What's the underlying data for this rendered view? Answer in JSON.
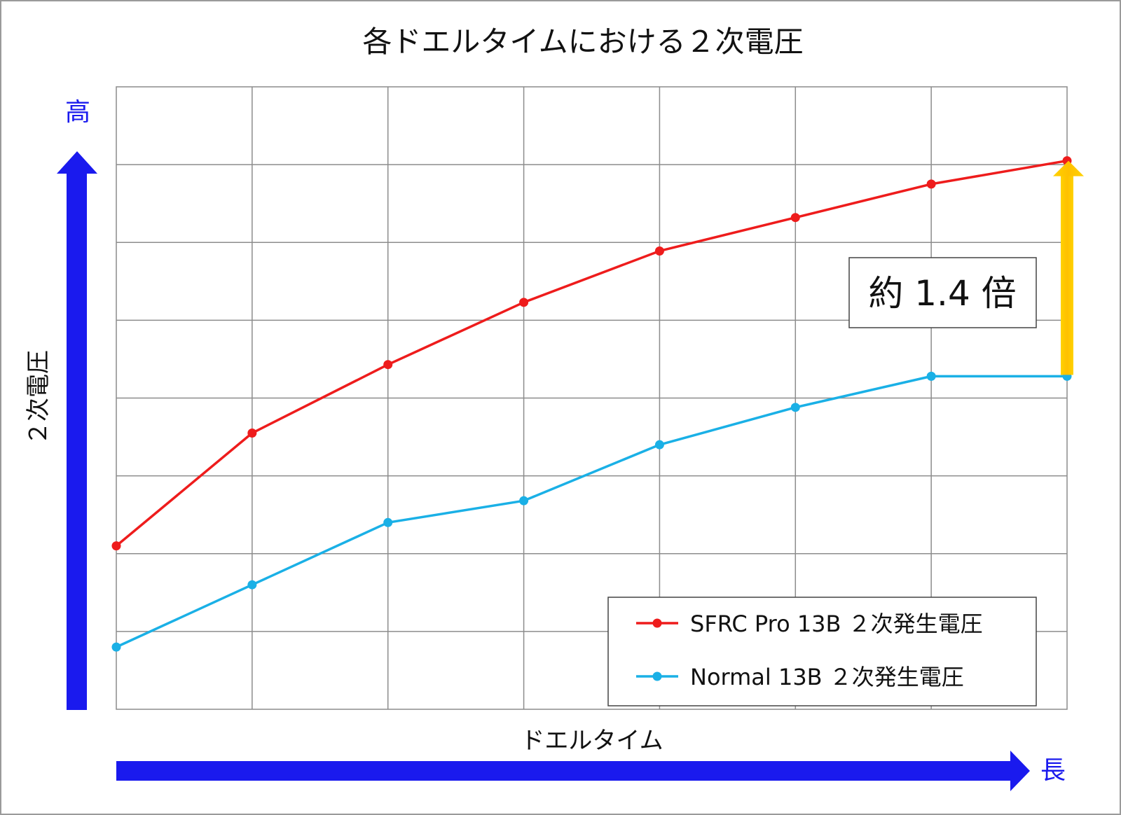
{
  "chart_data": {
    "type": "line",
    "title": "各ドエルタイムにおける２次電圧",
    "xlabel": "ドエルタイム",
    "ylabel": "２次電圧",
    "x_axis_end_label": "長",
    "y_axis_end_label": "高",
    "x": [
      0,
      1,
      2,
      3,
      4,
      5,
      6,
      7
    ],
    "xlim": [
      0,
      7
    ],
    "ylim": [
      0,
      8
    ],
    "grid": true,
    "legend_position": "bottom-right",
    "series": [
      {
        "name": "SFRC Pro 13B  ２次発生電圧",
        "color": "#ee1c1c",
        "values": [
          2.1,
          3.55,
          4.43,
          5.23,
          5.89,
          6.32,
          6.75,
          7.05
        ]
      },
      {
        "name": "Normal 13B  ２次発生電圧",
        "color": "#1ab0e6",
        "values": [
          0.8,
          1.6,
          2.4,
          2.68,
          3.4,
          3.88,
          4.28,
          4.28
        ]
      }
    ],
    "annotation": {
      "text": "約 1.4 倍",
      "arrow_color": "#ffcc00"
    },
    "axis_arrow_color": "#1a1aee"
  }
}
